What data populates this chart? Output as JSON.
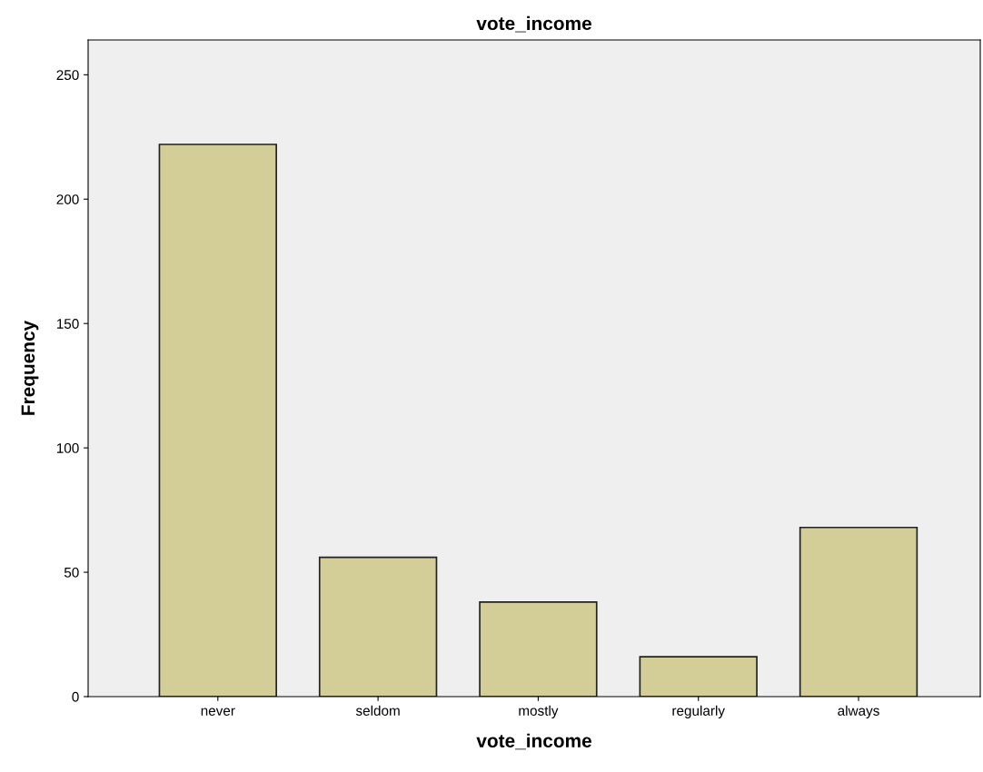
{
  "chart_data": {
    "type": "bar",
    "title": "vote_income",
    "xlabel": "vote_income",
    "ylabel": "Frequency",
    "categories": [
      "never",
      "seldom",
      "mostly",
      "regularly",
      "always"
    ],
    "values": [
      222,
      56,
      38,
      16,
      68
    ],
    "color": "#d3cd98",
    "ylim": [
      0,
      264
    ],
    "yticks": [
      0,
      50,
      100,
      150,
      200,
      250
    ],
    "grid": false,
    "legend": false
  }
}
